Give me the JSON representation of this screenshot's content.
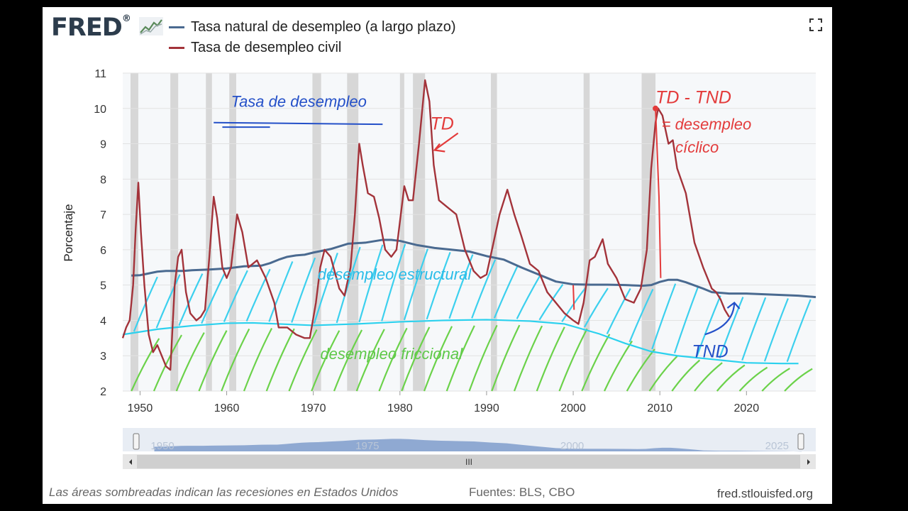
{
  "header": {
    "logo_text": "FRED",
    "logo_suffix": "®",
    "logo_graph_icon": "trend-chart-icon",
    "expand_icon": "fullscreen-icon"
  },
  "legend": [
    {
      "label": "Tasa natural de desempleo (a largo plazo)",
      "color": "#4a6a90"
    },
    {
      "label": "Tasa de desempleo civil",
      "color": "#a3333a"
    }
  ],
  "chart_data": {
    "type": "line",
    "ylabel": "Porcentaje",
    "xlim": [
      1948,
      2028
    ],
    "ylim": [
      2,
      11
    ],
    "yticks": [
      "2",
      "3",
      "4",
      "5",
      "6",
      "7",
      "8",
      "9",
      "10",
      "11"
    ],
    "xticks": [
      "1950",
      "1960",
      "1970",
      "1980",
      "1990",
      "2000",
      "2010",
      "2020"
    ],
    "grid": true,
    "recession_shading": true,
    "recessions": [
      [
        1948.9,
        1949.8
      ],
      [
        1953.5,
        1954.4
      ],
      [
        1957.6,
        1958.3
      ],
      [
        1960.3,
        1961.1
      ],
      [
        1969.9,
        1970.9
      ],
      [
        1973.9,
        1975.2
      ],
      [
        1980.0,
        1980.5
      ],
      [
        1981.5,
        1982.9
      ],
      [
        1990.5,
        1991.2
      ],
      [
        2001.2,
        2001.9
      ],
      [
        2007.9,
        2009.5
      ]
    ],
    "series": [
      {
        "name": "Tasa natural de desempleo (a largo plazo)",
        "color": "#4a6a90",
        "points": [
          [
            1949,
            5.27
          ],
          [
            1950,
            5.28
          ],
          [
            1951,
            5.33
          ],
          [
            1952,
            5.38
          ],
          [
            1953,
            5.4
          ],
          [
            1955,
            5.4
          ],
          [
            1956,
            5.42
          ],
          [
            1958,
            5.44
          ],
          [
            1960,
            5.47
          ],
          [
            1962,
            5.53
          ],
          [
            1964,
            5.55
          ],
          [
            1965,
            5.62
          ],
          [
            1966,
            5.72
          ],
          [
            1967,
            5.8
          ],
          [
            1968,
            5.84
          ],
          [
            1969,
            5.86
          ],
          [
            1970,
            5.92
          ],
          [
            1972,
            6.02
          ],
          [
            1974,
            6.17
          ],
          [
            1976,
            6.2
          ],
          [
            1978,
            6.28
          ],
          [
            1979,
            6.28
          ],
          [
            1980,
            6.25
          ],
          [
            1982,
            6.13
          ],
          [
            1984,
            6.05
          ],
          [
            1986,
            6.0
          ],
          [
            1988,
            5.95
          ],
          [
            1990,
            5.82
          ],
          [
            1992,
            5.72
          ],
          [
            1994,
            5.5
          ],
          [
            1996,
            5.3
          ],
          [
            1998,
            5.1
          ],
          [
            2000,
            5.02
          ],
          [
            2002,
            5.01
          ],
          [
            2004,
            5.01
          ],
          [
            2006,
            5.0
          ],
          [
            2008,
            4.98
          ],
          [
            2009,
            5.0
          ],
          [
            2010,
            5.09
          ],
          [
            2011,
            5.15
          ],
          [
            2012,
            5.15
          ],
          [
            2013,
            5.08
          ],
          [
            2015,
            4.9
          ],
          [
            2016,
            4.8
          ],
          [
            2018,
            4.76
          ],
          [
            2020,
            4.76
          ],
          [
            2022,
            4.74
          ],
          [
            2024,
            4.72
          ],
          [
            2026,
            4.7
          ],
          [
            2028,
            4.66
          ]
        ]
      },
      {
        "name": "Tasa de desempleo civil",
        "color": "#a3333a",
        "points": [
          [
            1948.0,
            3.5
          ],
          [
            1948.4,
            3.8
          ],
          [
            1948.8,
            4.0
          ],
          [
            1949.2,
            5.0
          ],
          [
            1949.5,
            6.6
          ],
          [
            1949.8,
            7.9
          ],
          [
            1950.1,
            6.5
          ],
          [
            1950.5,
            5.0
          ],
          [
            1951.0,
            3.6
          ],
          [
            1951.5,
            3.1
          ],
          [
            1952.0,
            3.3
          ],
          [
            1952.5,
            3.0
          ],
          [
            1953.0,
            2.7
          ],
          [
            1953.5,
            2.6
          ],
          [
            1954.0,
            5.0
          ],
          [
            1954.4,
            5.8
          ],
          [
            1954.8,
            6.0
          ],
          [
            1955.3,
            4.8
          ],
          [
            1955.8,
            4.2
          ],
          [
            1956.5,
            4.0
          ],
          [
            1957.0,
            4.1
          ],
          [
            1957.5,
            4.3
          ],
          [
            1958.0,
            5.8
          ],
          [
            1958.5,
            7.5
          ],
          [
            1958.9,
            6.9
          ],
          [
            1959.5,
            5.5
          ],
          [
            1960.0,
            5.2
          ],
          [
            1960.5,
            5.5
          ],
          [
            1961.2,
            7.0
          ],
          [
            1961.8,
            6.5
          ],
          [
            1962.5,
            5.5
          ],
          [
            1963.5,
            5.7
          ],
          [
            1964.5,
            5.2
          ],
          [
            1965.5,
            4.5
          ],
          [
            1966.0,
            3.8
          ],
          [
            1967.0,
            3.8
          ],
          [
            1968.0,
            3.6
          ],
          [
            1969.0,
            3.5
          ],
          [
            1969.6,
            3.5
          ],
          [
            1970.3,
            4.5
          ],
          [
            1970.8,
            5.5
          ],
          [
            1971.3,
            6.0
          ],
          [
            1972.0,
            5.8
          ],
          [
            1973.0,
            4.9
          ],
          [
            1973.6,
            4.7
          ],
          [
            1974.3,
            5.5
          ],
          [
            1974.8,
            7.0
          ],
          [
            1975.3,
            9.0
          ],
          [
            1975.7,
            8.4
          ],
          [
            1976.3,
            7.6
          ],
          [
            1977.0,
            7.5
          ],
          [
            1977.6,
            6.9
          ],
          [
            1978.3,
            6.0
          ],
          [
            1979.0,
            5.8
          ],
          [
            1979.6,
            6.0
          ],
          [
            1980.2,
            7.2
          ],
          [
            1980.5,
            7.8
          ],
          [
            1981.0,
            7.4
          ],
          [
            1981.5,
            7.4
          ],
          [
            1982.2,
            9.0
          ],
          [
            1982.9,
            10.8
          ],
          [
            1983.4,
            10.2
          ],
          [
            1983.9,
            8.4
          ],
          [
            1984.5,
            7.4
          ],
          [
            1985.5,
            7.2
          ],
          [
            1986.5,
            7.0
          ],
          [
            1987.5,
            6.0
          ],
          [
            1988.5,
            5.4
          ],
          [
            1989.3,
            5.2
          ],
          [
            1990.0,
            5.3
          ],
          [
            1990.8,
            6.2
          ],
          [
            1991.5,
            7.0
          ],
          [
            1992.4,
            7.7
          ],
          [
            1993.2,
            7.0
          ],
          [
            1994.0,
            6.4
          ],
          [
            1995.0,
            5.6
          ],
          [
            1996.0,
            5.4
          ],
          [
            1997.0,
            4.8
          ],
          [
            1998.0,
            4.5
          ],
          [
            1999.0,
            4.2
          ],
          [
            2000.0,
            4.0
          ],
          [
            2000.6,
            3.9
          ],
          [
            2001.2,
            4.5
          ],
          [
            2001.9,
            5.7
          ],
          [
            2002.5,
            5.8
          ],
          [
            2003.4,
            6.3
          ],
          [
            2004.0,
            5.6
          ],
          [
            2005.0,
            5.2
          ],
          [
            2006.0,
            4.6
          ],
          [
            2007.0,
            4.5
          ],
          [
            2007.8,
            4.9
          ],
          [
            2008.5,
            6.0
          ],
          [
            2009.0,
            8.3
          ],
          [
            2009.5,
            9.6
          ],
          [
            2009.8,
            10.0
          ],
          [
            2010.3,
            9.8
          ],
          [
            2011.0,
            9.0
          ],
          [
            2011.5,
            9.1
          ],
          [
            2012.0,
            8.3
          ],
          [
            2013.0,
            7.6
          ],
          [
            2014.0,
            6.2
          ],
          [
            2015.0,
            5.5
          ],
          [
            2016.0,
            4.9
          ],
          [
            2016.5,
            4.8
          ],
          [
            2017.0,
            4.6
          ],
          [
            2017.5,
            4.3
          ],
          [
            2018.0,
            4.1
          ]
        ]
      }
    ],
    "annotations": [
      {
        "text": "Tasa de desempleo",
        "color": "#2450c8",
        "x": 1960.5,
        "y": 10.05
      },
      {
        "text": "TD",
        "color": "#e33b3b",
        "x": 1983.5,
        "y": 9.4
      },
      {
        "text": "TD - TND",
        "color": "#e33b3b",
        "x": 2009.5,
        "y": 10.15
      },
      {
        "text": "= desempleo",
        "color": "#e33b3b",
        "x": 2010.2,
        "y": 9.4
      },
      {
        "text": "cíclico",
        "color": "#e33b3b",
        "x": 2011.8,
        "y": 8.75
      },
      {
        "text": "desempleo estructural",
        "color": "#2bbde8",
        "x": 1970.5,
        "y": 5.15
      },
      {
        "text": "desempleo friccional",
        "color": "#5ec94a",
        "x": 1970.8,
        "y": 2.9
      },
      {
        "text": "TND",
        "color": "#2450c8",
        "x": 2013.7,
        "y": 2.95
      }
    ],
    "drawn_curves": [
      {
        "name": "estructural-frontier",
        "color": "#2bd1ee",
        "points": [
          [
            1948,
            3.6
          ],
          [
            1952,
            3.75
          ],
          [
            1956,
            3.85
          ],
          [
            1960,
            3.92
          ],
          [
            1963,
            3.93
          ],
          [
            1966,
            3.9
          ],
          [
            1970,
            3.86
          ],
          [
            1975,
            3.9
          ],
          [
            1980,
            3.96
          ],
          [
            1985,
            4.0
          ],
          [
            1990,
            4.02
          ],
          [
            1995,
            3.98
          ],
          [
            1999,
            3.9
          ],
          [
            2003,
            3.62
          ],
          [
            2006,
            3.35
          ],
          [
            2009,
            3.12
          ],
          [
            2012,
            3.0
          ],
          [
            2016,
            2.9
          ],
          [
            2020,
            2.8
          ],
          [
            2024,
            2.78
          ],
          [
            2026,
            2.78
          ]
        ]
      }
    ],
    "range_selector": {
      "labels": [
        "1950",
        "1975",
        "2000",
        "2025"
      ]
    }
  },
  "footer": {
    "note": "Las áreas sombreadas indican las recesiones en Estados Unidos",
    "sources": "Fuentes: BLS, CBO",
    "url": "fred.stlouisfed.org"
  }
}
